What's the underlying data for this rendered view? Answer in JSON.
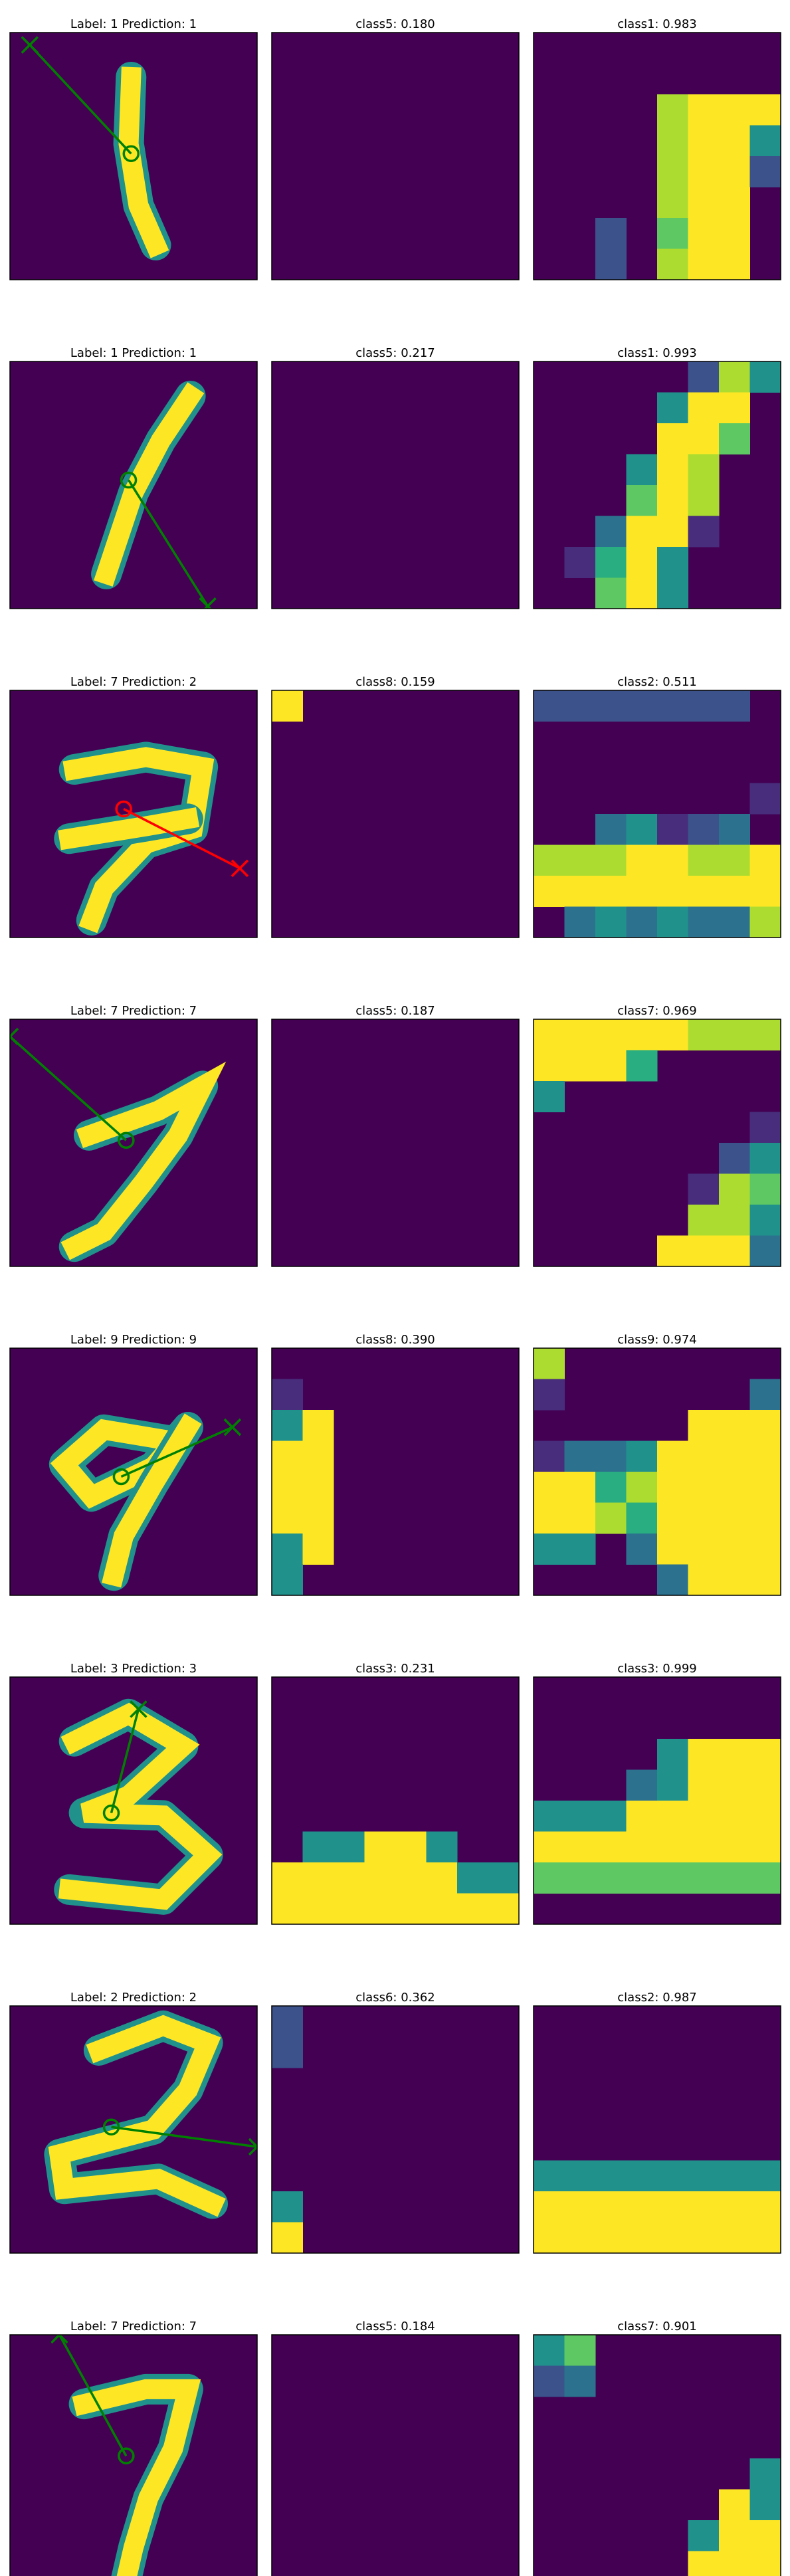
{
  "colors": {
    "dark": "#440154",
    "yellow": "#fde725",
    "green": "#008000",
    "red": "#ff0000"
  },
  "chart_data": [
    {
      "type": "heatmap",
      "title": "Label: 1 Prediction: 1",
      "correct": true,
      "glyph": "1a",
      "arrow": {
        "from": [
          0.49,
          0.49
        ],
        "to": [
          0.08,
          0.05
        ]
      }
    },
    {
      "type": "heatmap",
      "title": "class5: 0.180",
      "map": "blank"
    },
    {
      "type": "heatmap",
      "title": "class1: 0.983",
      "map": "m1a"
    },
    {
      "type": "heatmap",
      "title": "Label: 1 Prediction: 1",
      "correct": true,
      "glyph": "1b",
      "arrow": {
        "from": [
          0.48,
          0.48
        ],
        "to": [
          0.8,
          0.99
        ]
      }
    },
    {
      "type": "heatmap",
      "title": "class5: 0.217",
      "map": "blank"
    },
    {
      "type": "heatmap",
      "title": "class1: 0.993",
      "map": "m1b"
    },
    {
      "type": "heatmap",
      "title": "Label: 7 Prediction: 2",
      "correct": false,
      "glyph": "7a",
      "arrow": {
        "from": [
          0.46,
          0.48
        ],
        "to": [
          0.93,
          0.72
        ]
      }
    },
    {
      "type": "heatmap",
      "title": "class8: 0.159",
      "map": "m8a"
    },
    {
      "type": "heatmap",
      "title": "class2: 0.511",
      "map": "m2a"
    },
    {
      "type": "heatmap",
      "title": "Label: 7 Prediction: 7",
      "correct": true,
      "glyph": "7b",
      "arrow": {
        "from": [
          0.47,
          0.49
        ],
        "to": [
          0.0,
          0.07
        ]
      }
    },
    {
      "type": "heatmap",
      "title": "class5: 0.187",
      "map": "blank"
    },
    {
      "type": "heatmap",
      "title": "class7: 0.969",
      "map": "m7b"
    },
    {
      "type": "heatmap",
      "title": "Label: 9 Prediction: 9",
      "correct": true,
      "glyph": "9a",
      "arrow": {
        "from": [
          0.45,
          0.52
        ],
        "to": [
          0.9,
          0.32
        ]
      }
    },
    {
      "type": "heatmap",
      "title": "class8: 0.390",
      "map": "m8b"
    },
    {
      "type": "heatmap",
      "title": "class9: 0.974",
      "map": "m9a"
    },
    {
      "type": "heatmap",
      "title": "Label: 3 Prediction: 3",
      "correct": true,
      "glyph": "3a",
      "arrow": {
        "from": [
          0.41,
          0.55
        ],
        "to": [
          0.52,
          0.13
        ]
      }
    },
    {
      "type": "heatmap",
      "title": "class3: 0.231",
      "map": "m3a"
    },
    {
      "type": "heatmap",
      "title": "class3: 0.999",
      "map": "m3b"
    },
    {
      "type": "heatmap",
      "title": "Label: 2 Prediction: 2",
      "correct": true,
      "glyph": "2a",
      "arrow": {
        "from": [
          0.41,
          0.49
        ],
        "to": [
          1.0,
          0.57
        ]
      }
    },
    {
      "type": "heatmap",
      "title": "class6: 0.362",
      "map": "m6a"
    },
    {
      "type": "heatmap",
      "title": "class2: 0.987",
      "map": "m2b"
    },
    {
      "type": "heatmap",
      "title": "Label: 7 Prediction: 7",
      "correct": true,
      "glyph": "7c",
      "arrow": {
        "from": [
          0.47,
          0.49
        ],
        "to": [
          0.2,
          0.0
        ]
      }
    },
    {
      "type": "heatmap",
      "title": "class5: 0.184",
      "map": "blank"
    },
    {
      "type": "heatmap",
      "title": "class7: 0.901",
      "map": "m7c"
    }
  ]
}
